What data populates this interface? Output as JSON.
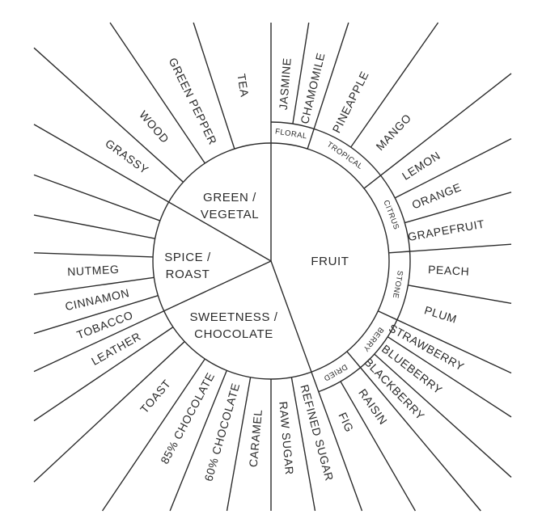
{
  "wheel": {
    "colors": {
      "line": "#2b2b2b",
      "text": "#2b2b2b",
      "background": "#ffffff"
    },
    "main": [
      {
        "key": "green",
        "lines": [
          "GREEN /",
          "VEGETAL"
        ]
      },
      {
        "key": "spice",
        "lines": [
          "SPICE /",
          "ROAST"
        ]
      },
      {
        "key": "sweet",
        "lines": [
          "SWEETNESS /",
          "CHOCOLATE"
        ]
      },
      {
        "key": "fruit",
        "lines": [
          "FRUIT"
        ]
      }
    ],
    "fruit_groups": [
      "FLORAL",
      "TROPICAL",
      "CITRUS",
      "STONE",
      "BERRY",
      "DRIED"
    ],
    "outer": [
      "JASMINE",
      "CHAMOMILE",
      "PINEAPPLE",
      "MANGO",
      "LEMON",
      "ORANGE",
      "GRAPEFRUIT",
      "PEACH",
      "PLUM",
      "STRAWBERRY",
      "BLUEBERRY",
      "BLACKBERRY",
      "RAISIN",
      "FIG",
      "REFINED SUGAR",
      "RAW SUGAR",
      "CARAMEL",
      "60% CHOCOLATE",
      "85% CHOCOLATE",
      "TOAST",
      "LEATHER",
      "TOBACCO",
      "CINNAMON",
      "NUTMEG",
      "GRASSY",
      "WOOD",
      "GREEN PEPPER",
      "TEA"
    ]
  }
}
